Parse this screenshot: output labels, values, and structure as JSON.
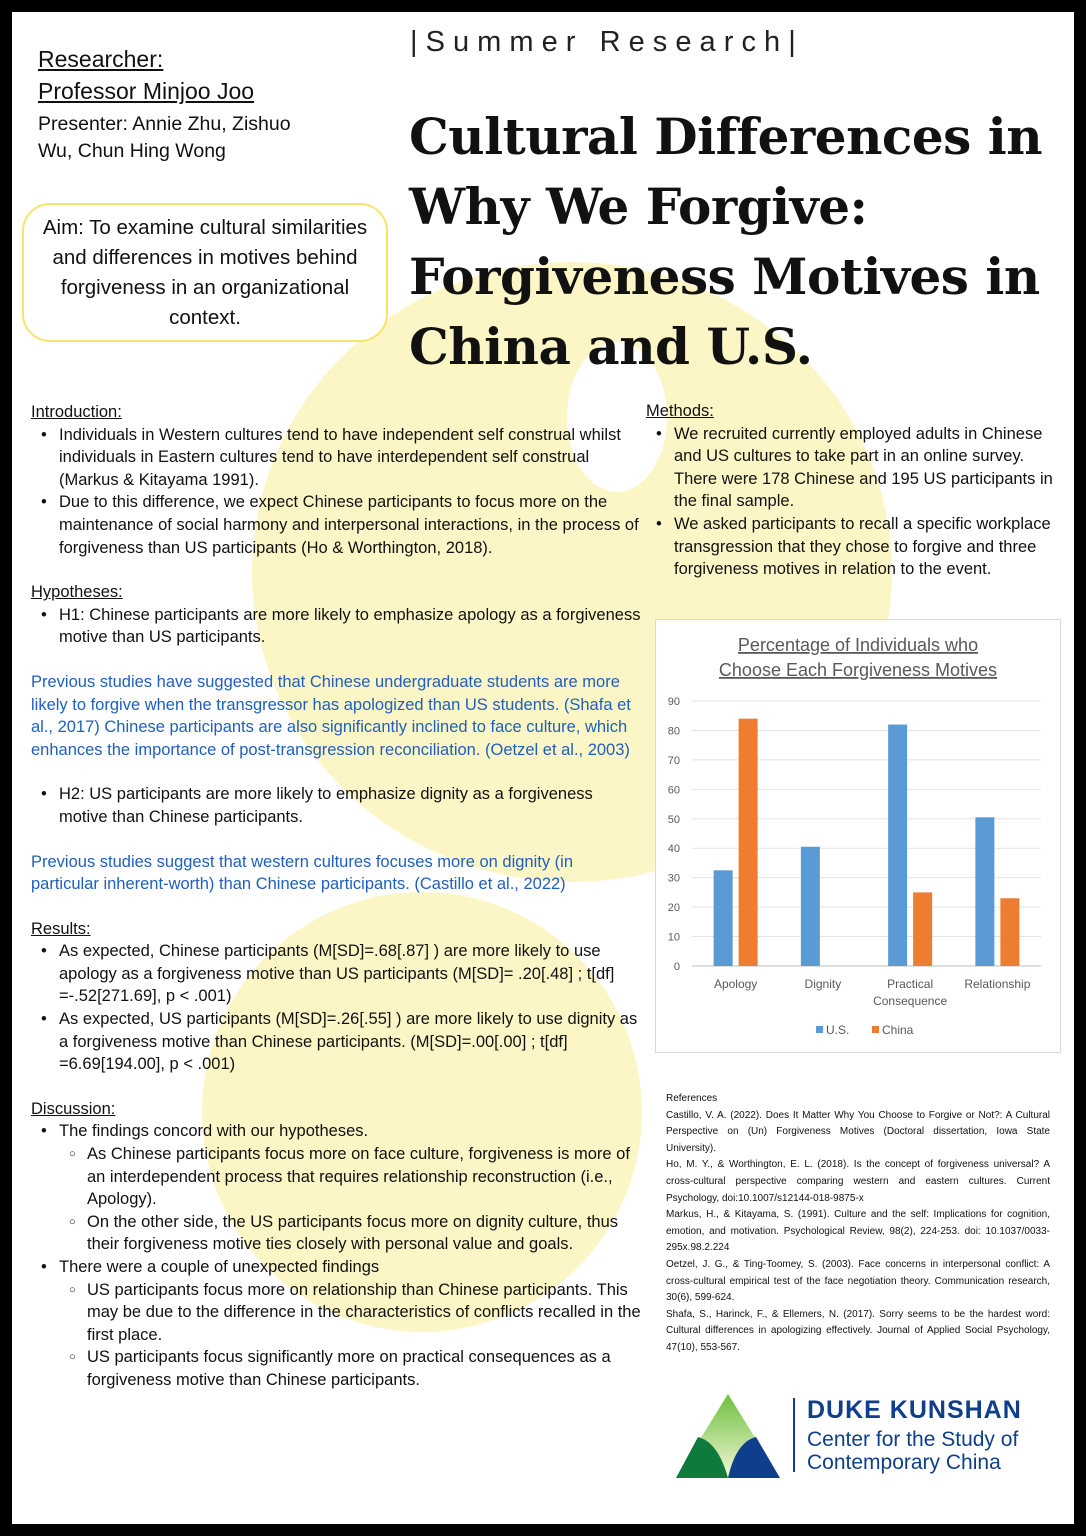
{
  "header": {
    "banner": "| S u m m e r   R e s e a r c h |",
    "researcher_label": "Researcher:",
    "researcher_name": "Professor Minjoo Joo",
    "presenters": "Presenter: Annie Zhu, Zishuo Wu, Chun Hing Wong",
    "aim": "Aim: To examine cultural similarities and differences in motives behind forgiveness in an organizational context.",
    "title": "Cultural Differences in Why We Forgive: Forgiveness Motives in China and U.S."
  },
  "introduction": {
    "heading": "Introduction:",
    "bullets": [
      "Individuals in Western cultures tend to have independent self construal whilst individuals in Eastern cultures tend to have interdependent self construal  (Markus & Kitayama 1991).",
      "Due to this difference, we expect Chinese participants to focus more on the maintenance of social harmony and interpersonal interactions, in the process  of forgiveness than US participants (Ho & Worthington, 2018)."
    ]
  },
  "hypotheses": {
    "heading": "Hypotheses:",
    "h1": "H1: Chinese participants are more likely to emphasize apology as a forgiveness motive than US participants.",
    "h1_note": "Previous studies have suggested that Chinese undergraduate students are more likely to forgive when the transgressor has apologized than US students. (Shafa et al., 2017) Chinese participants are also significantly inclined to face culture, which enhances the importance of post-transgression reconciliation. (Oetzel et al., 2003)",
    "h2": "H2: US participants are more likely to emphasize dignity as a forgiveness motive than Chinese participants.",
    "h2_note": "Previous studies suggest that western cultures focuses more on dignity (in particular inherent-worth) than Chinese participants. (Castillo et al., 2022)"
  },
  "results": {
    "heading": "Results:",
    "bullets": [
      "As expected, Chinese participants (M[SD]=.68[.87] ) are more likely to use apology as a forgiveness motive than US participants (M[SD]= .20[.48] ; t[df] =-.52[271.69], p < .001)",
      " As expected, US participants (M[SD]=.26[.55] ) are more likely to use dignity as a forgiveness motive than Chinese participants. (M[SD]=.00[.00] ; t[df] =6.69[194.00], p < .001)"
    ]
  },
  "discussion": {
    "heading": "Discussion:",
    "b1": "The findings concord with our hypotheses.",
    "b1_subs": [
      "As Chinese participants focus more on face culture, forgiveness is more of an interdependent process that requires relationship reconstruction (i.e., Apology).",
      "On the other side, the US participants focus more on dignity culture, thus their forgiveness motive ties closely with personal value and goals."
    ],
    "b2": "There were a couple of unexpected findings",
    "b2_subs": [
      "US participants focus more on relationship than Chinese participants. This may be due to the difference in the characteristics of conflicts recalled in the first place.",
      "US participants focus significantly more on practical consequences as a forgiveness motive than Chinese participants."
    ]
  },
  "methods": {
    "heading": "Methods:",
    "bullets": [
      "We recruited currently employed adults in Chinese and US cultures to take part in an online survey. There were 178 Chinese and 195 US participants in the final sample.",
      "We asked participants to recall a specific workplace transgression that they chose to forgive and three forgiveness motives in relation to the event."
    ]
  },
  "chart_data": {
    "type": "bar",
    "title": "Percentage of Individuals who Choose Each Forgiveness Motives",
    "categories": [
      "Apology",
      "Dignity",
      "Practical Consequence",
      "Relationship"
    ],
    "series": [
      {
        "name": "U.S.",
        "color": "#5b9bd5",
        "values": [
          32.5,
          40.5,
          82,
          50.5
        ]
      },
      {
        "name": "China",
        "color": "#ed7d31",
        "values": [
          84,
          0,
          25,
          23
        ]
      }
    ],
    "ylim": [
      0,
      90
    ],
    "yticks": [
      0,
      10,
      20,
      30,
      40,
      50,
      60,
      70,
      80,
      90
    ],
    "grid": true,
    "legend": "bottom"
  },
  "references": {
    "heading": "References",
    "items": [
      "Castillo, V. A. (2022). Does It Matter Why You Choose to Forgive or Not?: A Cultural Perspective on (Un) Forgiveness Motives (Doctoral dissertation, Iowa State University).",
      "Ho, M. Y., & Worthington, E. L. (2018). Is the concept of forgiveness universal? A cross-cultural perspective comparing western and eastern cultures. Current Psychology, doi:10.1007/s12144-018-9875-x",
      "Markus, H., & Kitayama, S. (1991). Culture and the self: Implications for cognition, emotion, and motivation. Psychological Review, 98(2), 224-253. doi: 10.1037/0033-295x.98.2.224",
      "Oetzel, J. G., & Ting-Toomey, S. (2003). Face concerns in interpersonal conflict: A cross-cultural empirical test of the face negotiation theory. Communication research, 30(6), 599-624.",
      "Shafa, S., Harinck, F., & Ellemers, N. (2017). Sorry seems to be the hardest word: Cultural differences in apologizing effectively. Journal of Applied Social Psychology, 47(10), 553-567."
    ]
  },
  "logo": {
    "line1": "DUKE KUNSHAN",
    "line2": "Center for the Study of",
    "line3": "Contemporary China"
  }
}
